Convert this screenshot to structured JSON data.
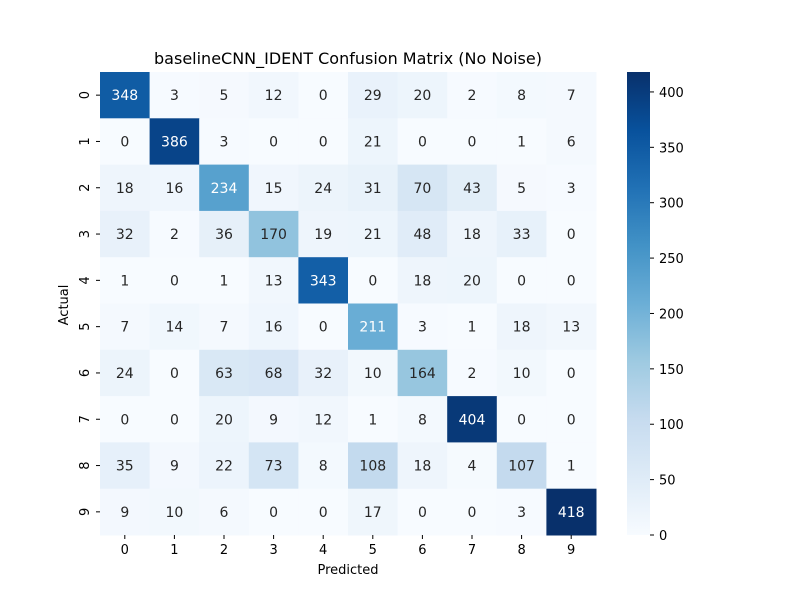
{
  "chart_data": {
    "type": "heatmap",
    "title": "baselineCNN_IDENT Confusion Matrix (No Noise)",
    "xlabel": "Predicted",
    "ylabel": "Actual",
    "x_categories": [
      "0",
      "1",
      "2",
      "3",
      "4",
      "5",
      "6",
      "7",
      "8",
      "9"
    ],
    "y_categories": [
      "0",
      "1",
      "2",
      "3",
      "4",
      "5",
      "6",
      "7",
      "8",
      "9"
    ],
    "values": [
      [
        348,
        3,
        5,
        12,
        0,
        29,
        20,
        2,
        8,
        7
      ],
      [
        0,
        386,
        3,
        0,
        0,
        21,
        0,
        0,
        1,
        6
      ],
      [
        18,
        16,
        234,
        15,
        24,
        31,
        70,
        43,
        5,
        3
      ],
      [
        32,
        2,
        36,
        170,
        19,
        21,
        48,
        18,
        33,
        0
      ],
      [
        1,
        0,
        1,
        13,
        343,
        0,
        18,
        20,
        0,
        0
      ],
      [
        7,
        14,
        7,
        16,
        0,
        211,
        3,
        1,
        18,
        13
      ],
      [
        24,
        0,
        63,
        68,
        32,
        10,
        164,
        2,
        10,
        0
      ],
      [
        0,
        0,
        20,
        9,
        12,
        1,
        8,
        404,
        0,
        0
      ],
      [
        35,
        9,
        22,
        73,
        8,
        108,
        18,
        4,
        107,
        1
      ],
      [
        9,
        10,
        6,
        0,
        0,
        17,
        0,
        0,
        3,
        418
      ]
    ],
    "colormap": "Blues",
    "color_range": [
      0,
      418
    ],
    "colorbar_ticks": [
      "0",
      "50",
      "100",
      "150",
      "200",
      "250",
      "300",
      "350",
      "400"
    ],
    "colorbar_tick_values": [
      0,
      50,
      100,
      150,
      200,
      250,
      300,
      350,
      400
    ],
    "grid": false,
    "colorbar_position": "right"
  }
}
